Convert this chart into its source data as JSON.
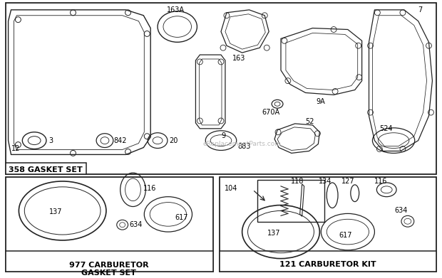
{
  "bg_color": "#ffffff",
  "line_color": "#222222",
  "section1_label": "358 GASKET SET",
  "section2_label": "977 CARBURETOR\nGASKET SET",
  "section3_label": "121 CARBURETOR KIT",
  "watermark": "eReplacementParts.com",
  "label_fontsize": 7,
  "bold_fontsize": 8,
  "fig_w": 6.2,
  "fig_h": 3.91,
  "dpi": 100
}
